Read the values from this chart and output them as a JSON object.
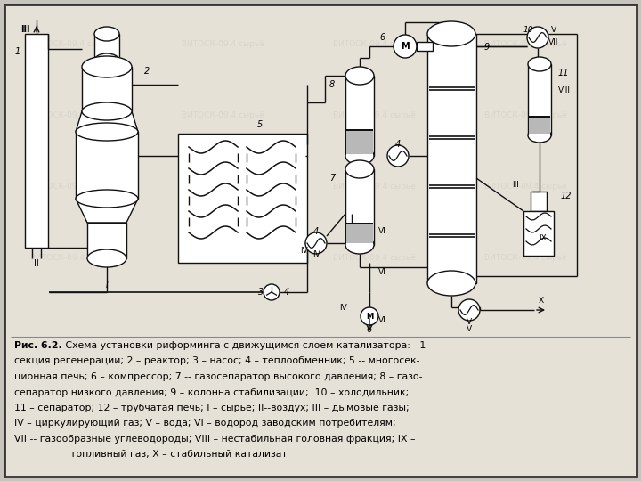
{
  "bg_color": "#c8c3bc",
  "paper_color": "#e6e1d6",
  "line_color": "#111111",
  "caption_bold": "Рис. 6.2.",
  "caption_lines": [
    " Схема установки риформинга с движущимся слоем катализатора:   1 –",
    "секция регенерации; 2 – реактор; 3 – насос; 4 – теплообменник; 5 -- многосек-",
    "ционная печь; 6 – компрессор; 7 -- газосепаратор высокого давления; 8 – газо-",
    "сепаратор низкого давления; 9 – колонна стабилизации;  10 – холодильник;",
    "11 – сепаратор; 12 – трубчатая печь; I – сырье; II--воздух; III – дымовые газы;",
    "IV – циркулирующий газ; V – вода; VI – водород заводским потребителям;",
    "VII -- газообразные углеводороды; VIII – нестабильная головная фракция; IX –",
    "                  топливный газ; X – стабильный катализат"
  ]
}
